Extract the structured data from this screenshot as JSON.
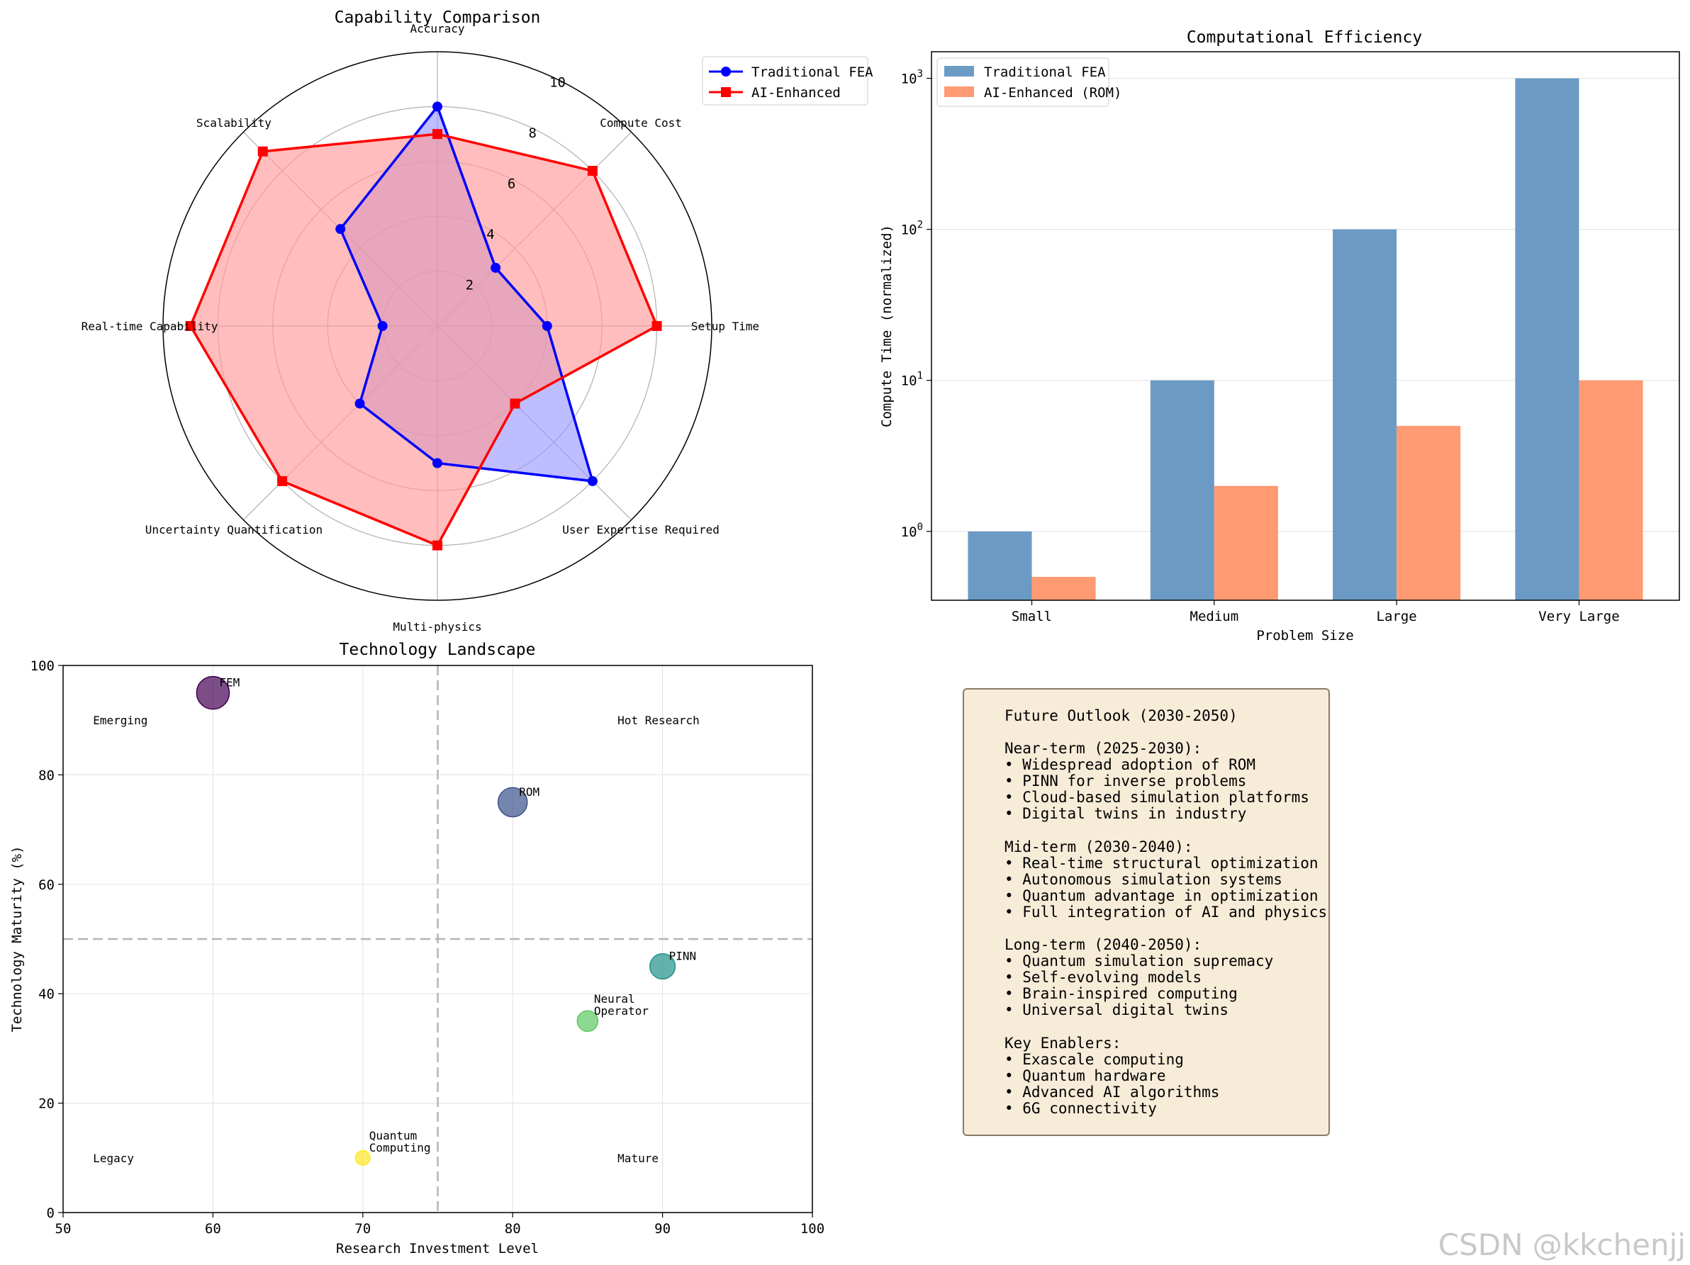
{
  "chart_data": [
    {
      "type": "radar",
      "title": "Capability Comparison",
      "axes": [
        "Accuracy",
        "Compute Cost",
        "Setup Time",
        "User Expertise Required",
        "Multi-physics",
        "Uncertainty Quantification",
        "Real-time Capability",
        "Scalability"
      ],
      "rlim": [
        0,
        10
      ],
      "rticks": [
        2,
        4,
        6,
        8,
        10
      ],
      "series": [
        {
          "name": "Traditional FEA",
          "values": [
            8,
            3,
            4,
            8,
            5,
            4,
            2,
            5
          ],
          "color": "#0000ff",
          "fill": "#9999ff",
          "marker": "circle"
        },
        {
          "name": "AI-Enhanced",
          "values": [
            7,
            8,
            8,
            4,
            8,
            8,
            9,
            9
          ],
          "color": "#ff0000",
          "fill": "#ff9999",
          "marker": "square"
        }
      ],
      "legend": "upper-right outside"
    },
    {
      "type": "bar",
      "title": "Computational Efficiency",
      "categories": [
        "Small",
        "Medium",
        "Large",
        "Very Large"
      ],
      "series": [
        {
          "name": "Traditional FEA",
          "values": [
            1,
            10,
            100,
            1000
          ],
          "color": "#4682b4"
        },
        {
          "name": "AI-Enhanced (ROM)",
          "values": [
            0.5,
            2,
            5,
            10
          ],
          "color": "#ff7f50"
        }
      ],
      "xlabel": "Problem Size",
      "ylabel": "Compute Time (normalized)",
      "yscale": "log",
      "ylim": [
        0.35,
        1500
      ],
      "yticks": [
        {
          "value": 1,
          "base": "10",
          "exp": "0"
        },
        {
          "value": 10,
          "base": "10",
          "exp": "1"
        },
        {
          "value": 100,
          "base": "10",
          "exp": "2"
        },
        {
          "value": 1000,
          "base": "10",
          "exp": "3"
        }
      ],
      "legend": "upper-left"
    },
    {
      "type": "scatter",
      "title": "Technology Landscape",
      "xlabel": "Research Investment Level",
      "ylabel": "Technology Maturity (%)",
      "xlim": [
        50,
        100
      ],
      "ylim": [
        0,
        100
      ],
      "xticks": [
        50,
        60,
        70,
        80,
        90,
        100
      ],
      "yticks": [
        0,
        20,
        40,
        60,
        80,
        100
      ],
      "divider_x": 75,
      "divider_y": 50,
      "points": [
        {
          "label_lines": [
            "FEM"
          ],
          "x": 60,
          "y": 95,
          "size": 100,
          "color": "#440154"
        },
        {
          "label_lines": [
            "ROM"
          ],
          "x": 80,
          "y": 75,
          "size": 80,
          "color": "#3b528b"
        },
        {
          "label_lines": [
            "PINN"
          ],
          "x": 90,
          "y": 45,
          "size": 60,
          "color": "#21918c"
        },
        {
          "label_lines": [
            "Neural",
            "Operator"
          ],
          "x": 85,
          "y": 35,
          "size": 40,
          "color": "#5ec962"
        },
        {
          "label_lines": [
            "Quantum",
            "Computing"
          ],
          "x": 70,
          "y": 10,
          "size": 20,
          "color": "#fde725"
        }
      ],
      "quadrant_labels": [
        {
          "text": "Emerging",
          "x": 52,
          "y": 90
        },
        {
          "text": "Hot Research",
          "x": 87,
          "y": 90
        },
        {
          "text": "Legacy",
          "x": 52,
          "y": 10
        },
        {
          "text": "Mature",
          "x": 87,
          "y": 10
        }
      ]
    }
  ],
  "outlook": {
    "title": "Future Outlook (2030-2050)",
    "sections": [
      {
        "heading": "Near-term (2025-2030):",
        "items": [
          "• Widespread adoption of ROM",
          "• PINN for inverse problems",
          "• Cloud-based simulation platforms",
          "• Digital twins in industry"
        ]
      },
      {
        "heading": "Mid-term (2030-2040):",
        "items": [
          "• Real-time structural optimization",
          "• Autonomous simulation systems",
          "• Quantum advantage in optimization",
          "• Full integration of AI and physics"
        ]
      },
      {
        "heading": "Long-term (2040-2050):",
        "items": [
          "• Quantum simulation supremacy",
          "• Self-evolving models",
          "• Brain-inspired computing",
          "• Universal digital twins"
        ]
      },
      {
        "heading": "Key Enablers:",
        "items": [
          "• Exascale computing",
          "• Quantum hardware",
          "• Advanced AI algorithms",
          "• 6G connectivity"
        ]
      }
    ]
  },
  "watermark": "CSDN @kkchenjj"
}
